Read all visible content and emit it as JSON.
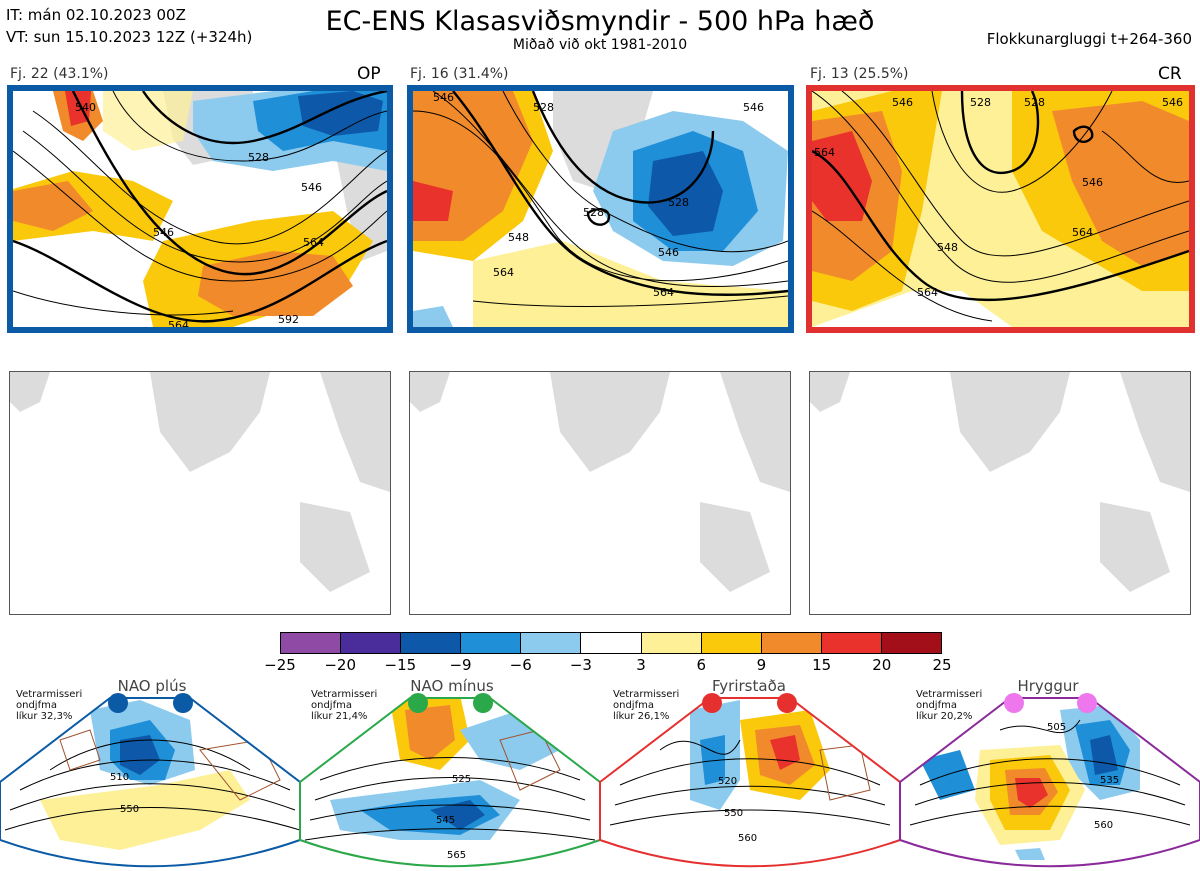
{
  "header": {
    "it_line": "IT: mán 02.10.2023 00Z",
    "vt_line": "VT: sun 15.10.2023 12Z  (+324h)",
    "title": "EC-ENS Klasasviðsmyndir - 500 hPa hæð",
    "subtitle": "Miðað við okt 1981-2010",
    "window": "Flokkunargluggi t+264-360"
  },
  "clusters": [
    {
      "label": "Fj. 22 (43.1%)",
      "tag": "OP",
      "frame_color": "#0a5aa5",
      "members": 22,
      "percent": 43.1,
      "contour_labels": [
        "540",
        "528",
        "546",
        "546",
        "564",
        "564",
        "592"
      ]
    },
    {
      "label": "Fj. 16 (31.4%)",
      "tag": "",
      "frame_color": "#0a5aa5",
      "members": 16,
      "percent": 31.4,
      "contour_labels": [
        "546",
        "528",
        "546",
        "528",
        "528",
        "548",
        "564",
        "546",
        "564"
      ]
    },
    {
      "label": "Fj. 13 (25.5%)",
      "tag": "CR",
      "frame_color": "#e03030",
      "members": 13,
      "percent": 25.5,
      "contour_labels": [
        "546",
        "528",
        "528",
        "546",
        "564",
        "546",
        "548",
        "564",
        "564"
      ]
    }
  ],
  "chart_data": {
    "type": "heatmap",
    "title": "EC-ENS Klasasviðsmyndir - 500 hPa hæð",
    "variable": "500 hPa height anomaly",
    "colorbar": {
      "ticks": [
        "−25",
        "−20",
        "−15",
        "−9",
        "−6",
        "−3",
        "3",
        "6",
        "9",
        "15",
        "20",
        "25"
      ],
      "colors": [
        "#8e4aa5",
        "#4a2d9a",
        "#0d58a8",
        "#1f8fd8",
        "#8ccbee",
        "#ffffff",
        "#fdf097",
        "#fbc90c",
        "#f18a2a",
        "#e8322b",
        "#a30f18"
      ]
    },
    "clusters": [
      {
        "name": "Fj. 22",
        "share_percent": 43.1,
        "tag": "OP"
      },
      {
        "name": "Fj. 16",
        "share_percent": 31.4,
        "tag": ""
      },
      {
        "name": "Fj. 13",
        "share_percent": 25.5,
        "tag": "CR"
      }
    ],
    "regimes": [
      {
        "name": "NAO plús",
        "likelihood": "32,3%",
        "contours": [
          "510",
          "550"
        ]
      },
      {
        "name": "NAO mínus",
        "likelihood": "21,4%",
        "contours": [
          "525",
          "545",
          "565"
        ]
      },
      {
        "name": "Fyrirstaða",
        "likelihood": "26,1%",
        "contours": [
          "520",
          "550",
          "560"
        ]
      },
      {
        "name": "Hryggur",
        "likelihood": "20,2%",
        "contours": [
          "505",
          "535",
          "560"
        ]
      }
    ]
  },
  "regimes": [
    {
      "name": "NAO plús",
      "note1": "Vetrarmisseri",
      "note2": "ondjfma",
      "note3": "líkur 32,3%",
      "color": "#0a5aa5",
      "contour_labels": [
        "510",
        "550"
      ]
    },
    {
      "name": "NAO mínus",
      "note1": "Vetrarmisseri",
      "note2": "ondjfma",
      "note3": "líkur 21,4%",
      "color": "#2aa84a",
      "contour_labels": [
        "525",
        "545",
        "565"
      ]
    },
    {
      "name": "Fyrirstaða",
      "note1": "Vetrarmisseri",
      "note2": "ondjfma",
      "note3": "líkur 26,1%",
      "color": "#e63030",
      "contour_labels": [
        "520",
        "550",
        "560"
      ]
    },
    {
      "name": "Hryggur",
      "note1": "Vetrarmisseri",
      "note2": "ondjfma",
      "note3": "líkur 20,2%",
      "color": "#8a2a9a",
      "dot_color": "#ee77ee",
      "contour_labels": [
        "505",
        "535",
        "560"
      ]
    }
  ]
}
